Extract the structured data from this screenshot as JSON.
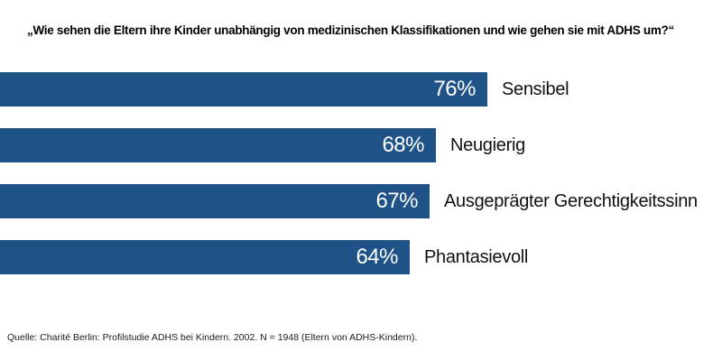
{
  "chart_data": {
    "type": "bar",
    "orientation": "horizontal",
    "title": "„Wie sehen die Eltern ihre Kinder unabhängig von medizinischen Klassifikationen und wie gehen sie mit ADHS um?“",
    "categories": [
      "Sensibel",
      "Neugierig",
      "Ausgeprägter Gerechtigkeitssinn",
      "Phantasievoll"
    ],
    "values": [
      76,
      68,
      67,
      64
    ],
    "value_labels": [
      "76%",
      "68%",
      "67%",
      "64%"
    ],
    "value_suffix": "%",
    "bar_color": "#1f5287",
    "value_label_color": "#ffffff",
    "category_label_color": "#111111",
    "xlim": [
      0,
      112
    ],
    "axis_hidden": true,
    "grid": false,
    "legend": false,
    "source": "Quelle: Charité Berlin: Profilstudie ADHS bei Kindern. 2002. N = 1948 (Eltern von ADHS-Kindern)."
  }
}
